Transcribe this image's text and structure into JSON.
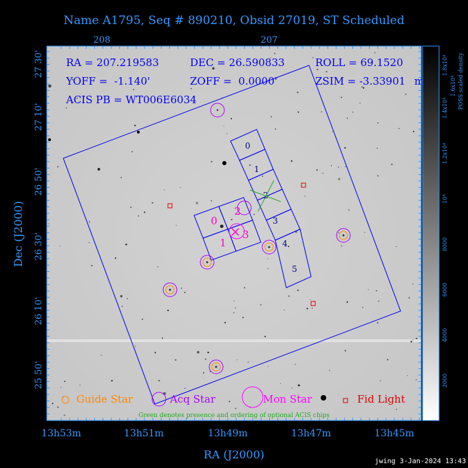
{
  "title": "Name A1795, Seq # 890210, Obsid 27019, ST Scheduled",
  "top_axis": [
    "208",
    "207"
  ],
  "left_axis": [
    "27 30'",
    "27 10'",
    "26 50'",
    "26 30'",
    "26 10'",
    "25 50'"
  ],
  "left_axis_label": "Dec (J2000)",
  "bottom_axis": [
    "13h53m",
    "13h51m",
    "13h49m",
    "13h47m",
    "13h45m"
  ],
  "bottom_axis_label": "RA (J2000)",
  "info": {
    "ra": "RA = 207.219583",
    "dec": "DEC = 26.590833",
    "roll": "ROLL = 69.1520",
    "yoff": "YOFF =  -1.140'",
    "zoff": "ZOFF =  0.0000'",
    "zsim": "ZSIM = -3.33901",
    "zsim_extra": "mm",
    "acis_pb": "ACIS PB = WT006E6034"
  },
  "chips_s": [
    "0",
    "1",
    "2",
    "3",
    "4",
    "5"
  ],
  "chips_i": [
    "0",
    "1",
    "2",
    "3"
  ],
  "colorbar": {
    "label": "POSS scaled density",
    "ticks": [
      "2000",
      "4000",
      "6000",
      "8000",
      "10⁴",
      "1.2x10⁴",
      "1.4x10⁴",
      "1.6x10⁴",
      "1.8x10⁴"
    ]
  },
  "legend": {
    "guide": "Guide Star",
    "acq": "Acq Star",
    "mon": "Mon Star",
    "fid": "Fid Light",
    "note": "Green denotes presence and ordering of optional ACIS chips"
  },
  "footer": "jwing  3-Jan-2024 13:43",
  "colors": {
    "axis": "#3399ff",
    "frame": "#0000ee",
    "guide": "#ff8800",
    "acq": "#aa00ff",
    "mon": "#ff00ff",
    "fid": "#dd0000",
    "green": "#22aa22"
  }
}
